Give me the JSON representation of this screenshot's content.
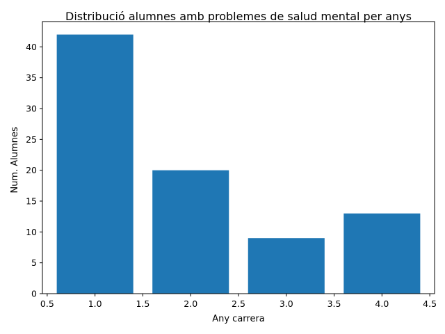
{
  "chart_data": {
    "type": "bar",
    "title": "Distribució alumnes amb problemes de salud mental per anys",
    "xlabel": "Any carrera",
    "ylabel": "Num. Alumnes",
    "x": [
      1,
      2,
      3,
      4
    ],
    "values": [
      42,
      20,
      9,
      13
    ],
    "bar_width": 0.8,
    "xlim": [
      0.45,
      4.55
    ],
    "ylim": [
      0,
      44.1
    ],
    "xticks": [
      0.5,
      1.0,
      1.5,
      2.0,
      2.5,
      3.0,
      3.5,
      4.0,
      4.5
    ],
    "xtick_labels": [
      "0.5",
      "1.0",
      "1.5",
      "2.0",
      "2.5",
      "3.0",
      "3.5",
      "4.0",
      "4.5"
    ],
    "yticks": [
      0,
      5,
      10,
      15,
      20,
      25,
      30,
      35,
      40
    ],
    "ytick_labels": [
      "0",
      "5",
      "10",
      "15",
      "20",
      "25",
      "30",
      "35",
      "40"
    ],
    "bar_color": "#1f77b4",
    "grid": false,
    "legend": "none"
  }
}
